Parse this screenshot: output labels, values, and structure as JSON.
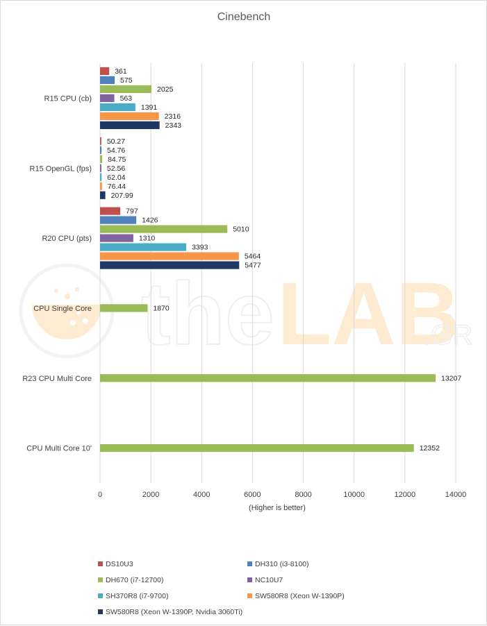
{
  "chart_data": {
    "type": "bar",
    "orientation": "horizontal",
    "title": "Cinebench",
    "xlabel": "(Higher is better)",
    "ylabel": "",
    "xlim": [
      0,
      14000
    ],
    "xticks": [
      0,
      2000,
      4000,
      6000,
      8000,
      10000,
      12000,
      14000
    ],
    "grid": true,
    "legend_position": "bottom",
    "watermark": "theLAB.GR",
    "categories": [
      "R15 CPU (cb)",
      "R15 OpenGL (fps)",
      "R20 CPU (pts)",
      "CPU Single Core",
      "R23 CPU Multi Core",
      "CPU Multi Core 10'"
    ],
    "series": [
      {
        "name": "DS10U3",
        "color": "#c0504d",
        "values": [
          361,
          50.27,
          797,
          null,
          null,
          null
        ],
        "labels": [
          "361",
          "50.27",
          "797",
          null,
          null,
          null
        ]
      },
      {
        "name": "DH310 (i3-8100)",
        "color": "#4f81bd",
        "values": [
          575,
          54.76,
          1426,
          null,
          null,
          null
        ],
        "labels": [
          "575",
          "54.76",
          "1426",
          null,
          null,
          null
        ]
      },
      {
        "name": "DH670 (i7-12700)",
        "color": "#9bbb59",
        "values": [
          2025,
          84.75,
          5010,
          1870,
          13207,
          12352
        ],
        "labels": [
          "2025",
          "84.75",
          "5010",
          "1870",
          "13207",
          "12352"
        ]
      },
      {
        "name": "NC10U7",
        "color": "#8064a2",
        "values": [
          563,
          52.56,
          1310,
          null,
          null,
          null
        ],
        "labels": [
          "563",
          "52.56",
          "1310",
          null,
          null,
          null
        ]
      },
      {
        "name": "SH370R8 (i7-9700)",
        "color": "#4bacc6",
        "values": [
          1391,
          62.04,
          3393,
          null,
          null,
          null
        ],
        "labels": [
          "1391",
          "62.04",
          "3393",
          null,
          null,
          null
        ]
      },
      {
        "name": "SW580R8 (Xeon W-1390P)",
        "color": "#f79646",
        "values": [
          2316,
          76.44,
          5464,
          null,
          null,
          null
        ],
        "labels": [
          "2316",
          "76.44",
          "5464",
          null,
          null,
          null
        ]
      },
      {
        "name": "SW580R8 (Xeon W-1390P, Nvidia 3060Ti)",
        "color": "#1f3864",
        "values": [
          2343,
          207.99,
          5477,
          null,
          null,
          null
        ],
        "labels": [
          "2343",
          "207.99",
          "5477",
          null,
          null,
          null
        ]
      }
    ]
  }
}
